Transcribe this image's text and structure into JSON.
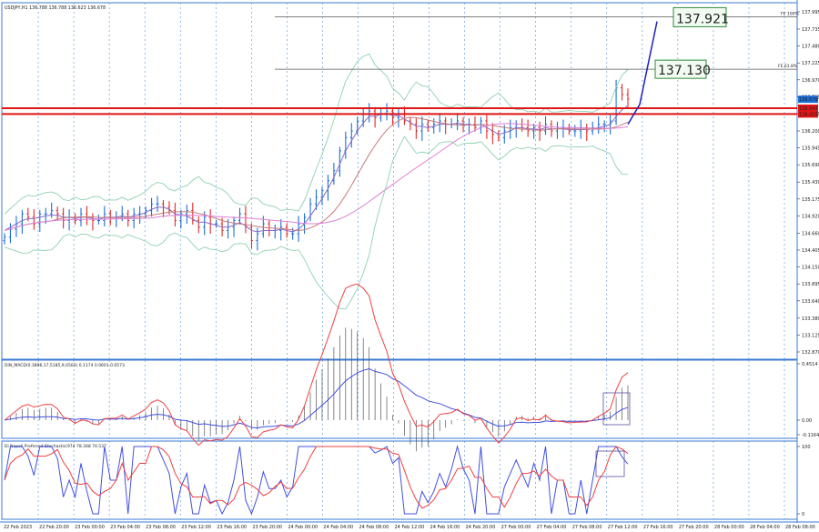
{
  "header": {
    "main_label": "USDJPY,H1  136.788 136.788 136.623 136.678",
    "macd_label": "DiN_MACD(0.3896,17,5185,9,0503)  0.1174  0.0601  0.0573",
    "stoch_label": "Di Napoli Preferred Stochastic(974 78.348 74.537"
  },
  "colors": {
    "bull": "#1e6fd6",
    "bear": "#e02a2a",
    "ma_fast": "#8a6cc8",
    "ma_mid": "#c87a78",
    "ma_slow": "#e07ed6",
    "band": "#8fd0b0",
    "level_red": "#e01515",
    "target_blue": "#2020c0",
    "macd_red": "#f04040",
    "macd_blue": "#4050e0",
    "grid": "#4a90d9"
  },
  "annotations": {
    "target1": "137.921",
    "target2": "137.130",
    "fe100": "FE 100%",
    "fe618": "FE 61.8%"
  },
  "chart_data": [
    {
      "type": "candlestick",
      "pane": "main",
      "symbol": "USDJPY",
      "timeframe": "H1",
      "ohlc_header": {
        "open": 136.788,
        "high": 136.788,
        "low": 136.623,
        "close": 136.678
      },
      "ylim": [
        132.87,
        137.995
      ],
      "y_ticks": [
        "137.995",
        "137.735",
        "137.480",
        "137.225",
        "136.970",
        "136.715",
        "136.460",
        "136.200",
        "135.945",
        "135.690",
        "135.430",
        "135.175",
        "134.920",
        "134.660",
        "134.405",
        "134.150",
        "133.895",
        "133.640",
        "133.380",
        "133.125",
        "132.870"
      ],
      "price_labels": {
        "current": "136.678",
        "level1": "136.543",
        "level2": "136.455"
      },
      "horizontal_levels": [
        136.543,
        136.455
      ],
      "fib_expansion": {
        "fe100": 137.921,
        "fe618": 137.13
      },
      "x_labels": [
        "22 Feb 2023",
        "22 Feb 20:00",
        "23 Feb 00:00",
        "23 Feb 04:00",
        "23 Feb 08:00",
        "23 Feb 12:00",
        "23 Feb 16:00",
        "23 Feb 20:00",
        "24 Feb 00:00",
        "24 Feb 04:00",
        "24 Feb 08:00",
        "24 Feb 12:00",
        "24 Feb 16:00",
        "24 Feb 20:00",
        "27 Feb 00:00",
        "27 Feb 04:00",
        "27 Feb 08:00",
        "27 Feb 12:00",
        "27 Feb 16:00",
        "27 Feb 20:00",
        "28 Feb 00:00",
        "28 Feb 04:00",
        "28 Feb 08:00"
      ],
      "closes": [
        134.6,
        134.72,
        134.8,
        134.95,
        134.9,
        134.8,
        134.95,
        134.95,
        135.0,
        134.95,
        134.85,
        134.9,
        134.85,
        134.95,
        134.9,
        134.85,
        134.85,
        134.95,
        134.9,
        134.9,
        134.95,
        134.85,
        134.95,
        134.95,
        135.0,
        135.1,
        135.1,
        135.05,
        135.0,
        134.85,
        134.95,
        135.0,
        134.85,
        134.75,
        134.9,
        134.8,
        134.8,
        134.7,
        134.75,
        134.85,
        134.95,
        134.75,
        134.55,
        134.65,
        134.8,
        134.7,
        134.7,
        134.75,
        134.65,
        134.65,
        134.8,
        134.9,
        135.1,
        135.2,
        135.3,
        135.45,
        135.6,
        135.9,
        136.1,
        136.2,
        136.35,
        136.45,
        136.5,
        136.4,
        136.45,
        136.5,
        136.4,
        136.45,
        136.35,
        136.3,
        136.2,
        136.3,
        136.25,
        136.3,
        136.35,
        136.3,
        136.3,
        136.35,
        136.3,
        136.3,
        136.25,
        136.35,
        136.2,
        136.15,
        136.1,
        136.2,
        136.25,
        136.3,
        136.25,
        136.2,
        136.25,
        136.2,
        136.3,
        136.2,
        136.25,
        136.25,
        136.2,
        136.2,
        136.25,
        136.2,
        136.25,
        136.3,
        136.3,
        136.35,
        136.85,
        136.75,
        136.68
      ],
      "ma_fast": [
        134.7,
        134.75,
        134.8,
        134.85,
        134.88,
        134.88,
        134.9,
        134.92,
        134.93,
        134.93,
        134.9,
        134.9,
        134.88,
        134.9,
        134.9,
        134.88,
        134.87,
        134.9,
        134.9,
        134.9,
        134.92,
        134.9,
        134.92,
        134.94,
        134.97,
        135.02,
        135.05,
        135.05,
        135.02,
        134.95,
        134.93,
        134.92,
        134.87,
        134.82,
        134.83,
        134.8,
        134.78,
        134.75,
        134.75,
        134.78,
        134.82,
        134.77,
        134.7,
        134.68,
        134.7,
        134.7,
        134.7,
        134.72,
        134.7,
        134.68,
        134.72,
        134.8,
        134.92,
        135.05,
        135.18,
        135.33,
        135.5,
        135.7,
        135.9,
        136.05,
        136.2,
        136.32,
        136.42,
        136.42,
        136.45,
        136.47,
        136.43,
        136.43,
        136.38,
        136.33,
        136.27,
        136.27,
        136.25,
        136.27,
        136.3,
        136.3,
        136.3,
        136.32,
        136.3,
        136.3,
        136.28,
        136.3,
        136.25,
        136.2,
        136.15,
        136.17,
        136.2,
        136.25,
        136.25,
        136.23,
        136.23,
        136.22,
        136.25,
        136.23,
        136.23,
        136.23,
        136.22,
        136.22,
        136.22,
        136.22,
        136.23,
        136.25,
        136.27,
        136.3,
        136.42,
        136.52,
        136.58
      ]
    },
    {
      "type": "line+histogram",
      "pane": "macd",
      "title": "DiN_MACD",
      "y_ticks": [
        "0.4514",
        "0.00",
        "-0.1164"
      ],
      "ylim": [
        -0.1164,
        0.4514
      ]
    },
    {
      "type": "line",
      "pane": "stochastic",
      "title": "Di Napoli Preferred Stochastic",
      "y_ticks": [
        "100",
        "0"
      ],
      "ylim": [
        0,
        100
      ]
    }
  ]
}
